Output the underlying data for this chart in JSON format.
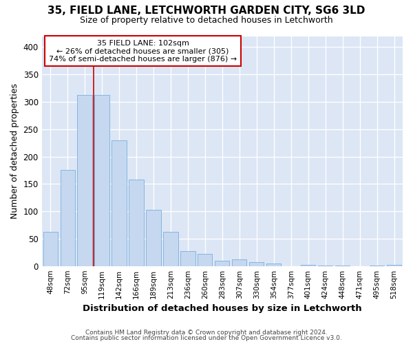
{
  "title1": "35, FIELD LANE, LETCHWORTH GARDEN CITY, SG6 3LD",
  "title2": "Size of property relative to detached houses in Letchworth",
  "xlabel": "Distribution of detached houses by size in Letchworth",
  "ylabel": "Number of detached properties",
  "categories": [
    "48sqm",
    "72sqm",
    "95sqm",
    "119sqm",
    "142sqm",
    "166sqm",
    "189sqm",
    "213sqm",
    "236sqm",
    "260sqm",
    "283sqm",
    "307sqm",
    "330sqm",
    "354sqm",
    "377sqm",
    "401sqm",
    "424sqm",
    "448sqm",
    "471sqm",
    "495sqm",
    "518sqm"
  ],
  "values": [
    63,
    175,
    313,
    313,
    230,
    158,
    103,
    62,
    27,
    22,
    10,
    12,
    7,
    5,
    0,
    2,
    1,
    1,
    0,
    1,
    2
  ],
  "bar_color": "#c5d8f0",
  "bar_edge_color": "#7aaedc",
  "vline_x": 2.5,
  "vline_color": "#cc0000",
  "annotation_line1": "35 FIELD LANE: 102sqm",
  "annotation_line2": "← 26% of detached houses are smaller (305)",
  "annotation_line3": "74% of semi-detached houses are larger (876) →",
  "annotation_box_facecolor": "#ffffff",
  "annotation_box_edgecolor": "#cc0000",
  "ylim": [
    0,
    420
  ],
  "yticks": [
    0,
    50,
    100,
    150,
    200,
    250,
    300,
    350,
    400
  ],
  "plot_bg_color": "#dce6f5",
  "fig_bg_color": "#ffffff",
  "grid_color": "#ffffff",
  "footer1": "Contains HM Land Registry data © Crown copyright and database right 2024.",
  "footer2": "Contains public sector information licensed under the Open Government Licence v3.0."
}
